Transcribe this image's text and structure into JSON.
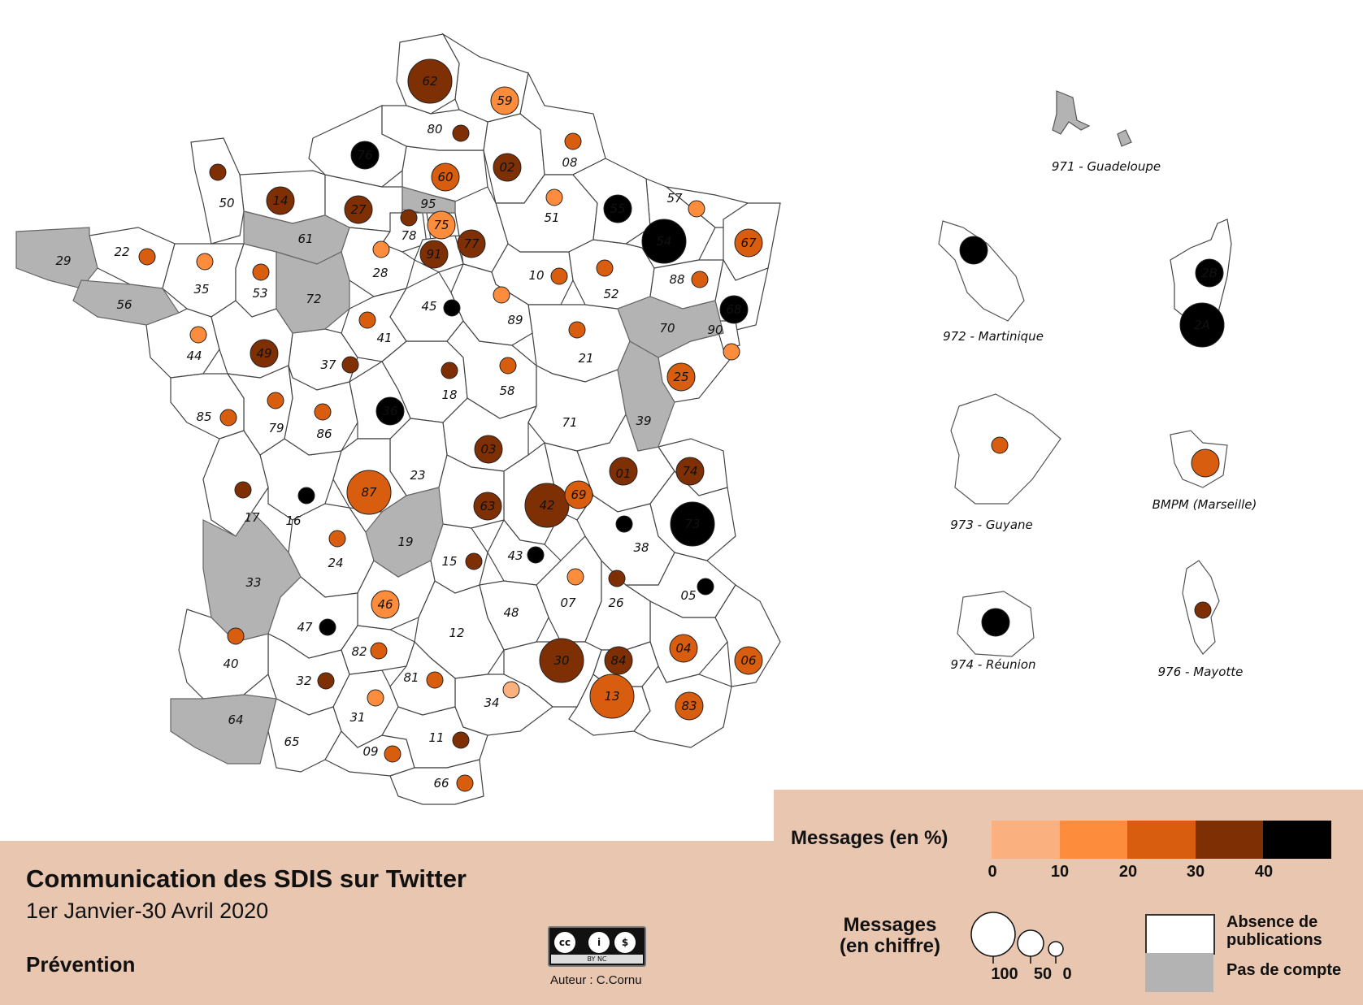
{
  "title": "Communication des SDIS sur Twitter",
  "subtitle": "1er Janvier-30 Avril 2020",
  "theme": "Prévention",
  "author": "Auteur : C.Cornu",
  "license": {
    "icon": "creative-commons-by-nc-icon",
    "text": "BY NC"
  },
  "legend": {
    "pct_title": "Messages (en %)",
    "pct_ticks": [
      "0",
      "10",
      "20",
      "30",
      "40"
    ],
    "classes": [
      {
        "range": "0-10",
        "color": "#fbb07f"
      },
      {
        "range": "10-20",
        "color": "#fd8d3c"
      },
      {
        "range": "20-30",
        "color": "#d95d0e"
      },
      {
        "range": "30-40",
        "color": "#7f2f04"
      },
      {
        "range": "40+",
        "color": "#000000"
      }
    ],
    "count_title": "Messages\n(en chiffre)",
    "count_values": [
      "100",
      "50",
      "0"
    ],
    "absence_label": "Absence de publications",
    "nocount_label": "Pas de compte",
    "absence_color": "#ffffff",
    "nocount_color": "#b3b3b3"
  },
  "departments": [
    {
      "code": "01",
      "cls": 3,
      "r": 17,
      "num": true
    },
    {
      "code": "02",
      "cls": 3,
      "r": 17,
      "num": true
    },
    {
      "code": "03",
      "cls": 3,
      "r": 17,
      "num": true
    },
    {
      "code": "04",
      "cls": 2,
      "r": 17,
      "num": true
    },
    {
      "code": "05",
      "cls": 4,
      "r": 10,
      "num": false
    },
    {
      "code": "06",
      "cls": 2,
      "r": 17,
      "num": true
    },
    {
      "code": "07",
      "cls": 1,
      "r": 10,
      "num": false
    },
    {
      "code": "08",
      "cls": 2,
      "r": 10,
      "num": false
    },
    {
      "code": "09",
      "cls": 2,
      "r": 10,
      "num": false
    },
    {
      "code": "10",
      "cls": 2,
      "r": 10,
      "num": false
    },
    {
      "code": "11",
      "cls": 3,
      "r": 10,
      "num": false
    },
    {
      "code": "12",
      "cls": null,
      "r": 0,
      "num": false
    },
    {
      "code": "13",
      "cls": 2,
      "r": 27,
      "num": true
    },
    {
      "code": "14",
      "cls": 3,
      "r": 17,
      "num": true
    },
    {
      "code": "15",
      "cls": 3,
      "r": 10,
      "num": false
    },
    {
      "code": "16",
      "cls": 4,
      "r": 10,
      "num": false
    },
    {
      "code": "17",
      "cls": 3,
      "r": 10,
      "num": false
    },
    {
      "code": "18",
      "cls": 3,
      "r": 10,
      "num": false
    },
    {
      "code": "19",
      "cls": "nocount",
      "r": 0,
      "num": false
    },
    {
      "code": "21",
      "cls": 2,
      "r": 10,
      "num": false
    },
    {
      "code": "22",
      "cls": 2,
      "r": 10,
      "num": false
    },
    {
      "code": "23",
      "cls": null,
      "r": 0,
      "num": false
    },
    {
      "code": "24",
      "cls": 2,
      "r": 10,
      "num": false
    },
    {
      "code": "25",
      "cls": 2,
      "r": 17,
      "num": true
    },
    {
      "code": "26",
      "cls": 3,
      "r": 10,
      "num": false
    },
    {
      "code": "27",
      "cls": 3,
      "r": 17,
      "num": true
    },
    {
      "code": "28",
      "cls": 1,
      "r": 10,
      "num": false
    },
    {
      "code": "29",
      "cls": "nocount",
      "r": 0,
      "num": false
    },
    {
      "code": "30",
      "cls": 3,
      "r": 27,
      "num": true
    },
    {
      "code": "31",
      "cls": 1,
      "r": 10,
      "num": false
    },
    {
      "code": "32",
      "cls": 3,
      "r": 10,
      "num": false
    },
    {
      "code": "33",
      "cls": "nocount",
      "r": 0,
      "num": false
    },
    {
      "code": "34",
      "cls": 0,
      "r": 10,
      "num": false
    },
    {
      "code": "35",
      "cls": 1,
      "r": 10,
      "num": false
    },
    {
      "code": "36",
      "cls": 4,
      "r": 17,
      "num": true
    },
    {
      "code": "37",
      "cls": 3,
      "r": 10,
      "num": false
    },
    {
      "code": "38",
      "cls": 4,
      "r": 10,
      "num": false
    },
    {
      "code": "39",
      "cls": "nocount",
      "r": 0,
      "num": false
    },
    {
      "code": "40",
      "cls": 2,
      "r": 10,
      "num": false
    },
    {
      "code": "41",
      "cls": 2,
      "r": 10,
      "num": false
    },
    {
      "code": "42",
      "cls": 3,
      "r": 27,
      "num": true
    },
    {
      "code": "43",
      "cls": 4,
      "r": 10,
      "num": false
    },
    {
      "code": "44",
      "cls": 1,
      "r": 10,
      "num": false
    },
    {
      "code": "45",
      "cls": 4,
      "r": 10,
      "num": false
    },
    {
      "code": "46",
      "cls": 1,
      "r": 17,
      "num": true
    },
    {
      "code": "47",
      "cls": 4,
      "r": 10,
      "num": false
    },
    {
      "code": "48",
      "cls": null,
      "r": 0,
      "num": false
    },
    {
      "code": "49",
      "cls": 3,
      "r": 17,
      "num": true
    },
    {
      "code": "50",
      "cls": 3,
      "r": 10,
      "num": false
    },
    {
      "code": "51",
      "cls": 1,
      "r": 10,
      "num": false
    },
    {
      "code": "52",
      "cls": 2,
      "r": 10,
      "num": false
    },
    {
      "code": "53",
      "cls": 2,
      "r": 10,
      "num": false
    },
    {
      "code": "54",
      "cls": 4,
      "r": 27,
      "num": true
    },
    {
      "code": "55",
      "cls": 4,
      "r": 17,
      "num": true
    },
    {
      "code": "56",
      "cls": "nocount",
      "r": 0,
      "num": false
    },
    {
      "code": "57",
      "cls": 1,
      "r": 10,
      "num": false
    },
    {
      "code": "58",
      "cls": 2,
      "r": 10,
      "num": false
    },
    {
      "code": "59",
      "cls": 1,
      "r": 17,
      "num": true
    },
    {
      "code": "60",
      "cls": 2,
      "r": 17,
      "num": true
    },
    {
      "code": "61",
      "cls": "nocount",
      "r": 0,
      "num": false
    },
    {
      "code": "62",
      "cls": 3,
      "r": 27,
      "num": true
    },
    {
      "code": "63",
      "cls": 3,
      "r": 17,
      "num": true
    },
    {
      "code": "64",
      "cls": "nocount",
      "r": 0,
      "num": false
    },
    {
      "code": "65",
      "cls": null,
      "r": 0,
      "num": false
    },
    {
      "code": "66",
      "cls": 2,
      "r": 10,
      "num": false
    },
    {
      "code": "67",
      "cls": 2,
      "r": 17,
      "num": true
    },
    {
      "code": "68",
      "cls": 4,
      "r": 17,
      "num": true
    },
    {
      "code": "69",
      "cls": 2,
      "r": 17,
      "num": true
    },
    {
      "code": "70",
      "cls": "nocount",
      "r": 0,
      "num": false
    },
    {
      "code": "71",
      "cls": null,
      "r": 0,
      "num": false
    },
    {
      "code": "72",
      "cls": "nocount",
      "r": 0,
      "num": false
    },
    {
      "code": "73",
      "cls": 4,
      "r": 27,
      "num": true
    },
    {
      "code": "74",
      "cls": 3,
      "r": 17,
      "num": true
    },
    {
      "code": "75",
      "cls": 1,
      "r": 17,
      "num": true
    },
    {
      "code": "76",
      "cls": 4,
      "r": 17,
      "num": true
    },
    {
      "code": "77",
      "cls": 3,
      "r": 17,
      "num": true
    },
    {
      "code": "78",
      "cls": 3,
      "r": 10,
      "num": false
    },
    {
      "code": "79",
      "cls": 2,
      "r": 10,
      "num": false
    },
    {
      "code": "80",
      "cls": 3,
      "r": 10,
      "num": false
    },
    {
      "code": "81",
      "cls": 2,
      "r": 10,
      "num": false
    },
    {
      "code": "82",
      "cls": 2,
      "r": 10,
      "num": false
    },
    {
      "code": "83",
      "cls": 2,
      "r": 17,
      "num": true
    },
    {
      "code": "84",
      "cls": 3,
      "r": 17,
      "num": true
    },
    {
      "code": "85",
      "cls": 2,
      "r": 10,
      "num": false
    },
    {
      "code": "86",
      "cls": 2,
      "r": 10,
      "num": false
    },
    {
      "code": "87",
      "cls": 2,
      "r": 27,
      "num": true
    },
    {
      "code": "88",
      "cls": 2,
      "r": 10,
      "num": false
    },
    {
      "code": "89",
      "cls": 1,
      "r": 10,
      "num": false
    },
    {
      "code": "90",
      "cls": 1,
      "r": 10,
      "num": false
    },
    {
      "code": "91",
      "cls": 3,
      "r": 17,
      "num": true
    },
    {
      "code": "95",
      "cls": "nocount",
      "r": 0,
      "num": false
    },
    {
      "code": "2A",
      "cls": 4,
      "r": 27,
      "num": true
    },
    {
      "code": "2B",
      "cls": 4,
      "r": 17,
      "num": true
    }
  ],
  "overseas": [
    {
      "key": "971",
      "label": "971 - Guadeloupe",
      "cls": "nocount"
    },
    {
      "key": "972",
      "label": "972 - Martinique",
      "cls": 4
    },
    {
      "key": "973",
      "label": "973 - Guyane",
      "cls": 2
    },
    {
      "key": "974",
      "label": "974 - Réunion",
      "cls": 4
    },
    {
      "key": "bmpm",
      "label": "BMPM (Marseille)",
      "cls": 2
    },
    {
      "key": "976",
      "label": "976 - Mayotte",
      "cls": 3
    }
  ]
}
